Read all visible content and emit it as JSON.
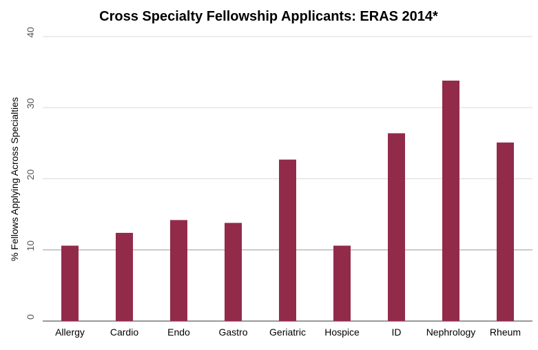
{
  "chart_data": {
    "type": "bar",
    "title": "Cross Specialty Fellowship Applicants: ERAS 2014*",
    "xlabel": "",
    "ylabel": "% Fellows Applying Across Specialties",
    "categories": [
      "Allergy",
      "Cardio",
      "Endo",
      "Gastro",
      "Geriatric",
      "Hospice",
      "ID",
      "Nephrology",
      "Rheum"
    ],
    "values": [
      10.6,
      12.4,
      14.2,
      13.8,
      22.7,
      10.6,
      26.4,
      33.8,
      25.1
    ],
    "ylim": [
      0,
      40
    ],
    "yticks": [
      "0",
      "10",
      "20",
      "30",
      "40"
    ],
    "grid": true,
    "bar_color": "#922b4a"
  }
}
